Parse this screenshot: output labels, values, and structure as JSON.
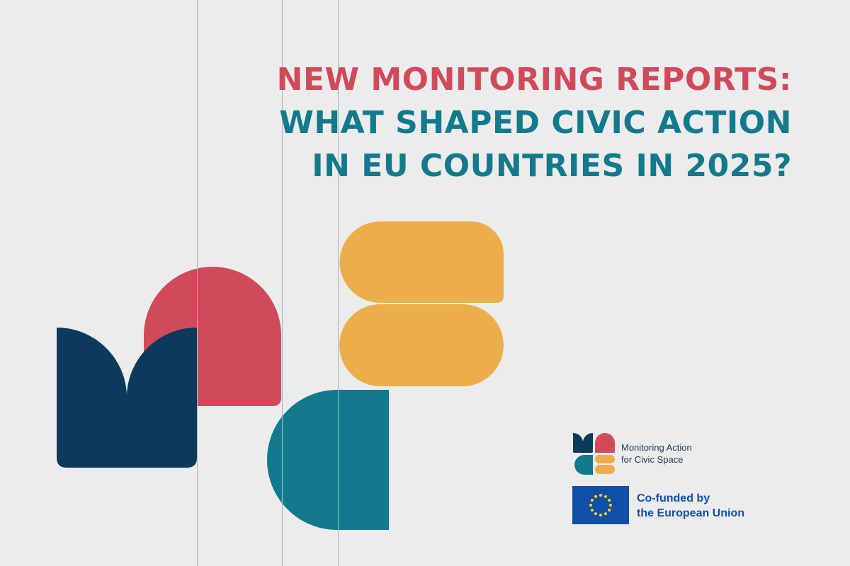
{
  "headline": {
    "line1": "NEW MONITORING REPORTS:",
    "line2": "WHAT SHAPED CIVIC ACTION",
    "line3": "IN EU COUNTRIES IN 2025?"
  },
  "logo": {
    "line1": "Monitoring Action",
    "line2": "for Civic Space"
  },
  "eu": {
    "line1": "Co-funded by",
    "line2": "the European Union"
  },
  "colors": {
    "background": "#ECECEC",
    "red": "#D14A5C",
    "teal": "#127A8C",
    "navy": "#0B3A5B",
    "yellow": "#ECAE4A",
    "eu_blue": "#0F4FA8"
  }
}
